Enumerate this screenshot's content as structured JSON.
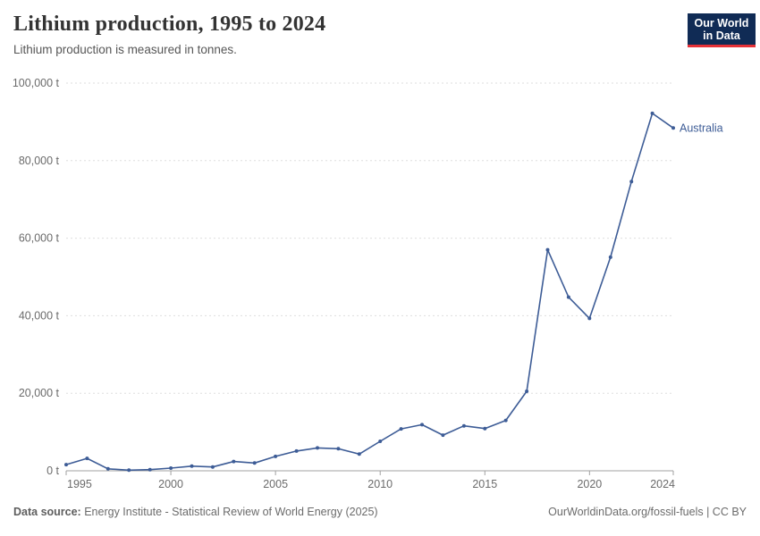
{
  "header": {
    "title": "Lithium production, 1995 to 2024",
    "subtitle": "Lithium production is measured in tonnes.",
    "logo": {
      "line1": "Our World",
      "line2": "in Data",
      "bg_color": "#102b55",
      "accent_color": "#e63137"
    }
  },
  "chart_data": {
    "type": "line",
    "title": "Lithium production, 1995 to 2024",
    "xlabel": "",
    "ylabel": "",
    "unit": "t",
    "ylim": [
      0,
      100000
    ],
    "grid": "horizontal-dashed",
    "legend_position": "end-of-line",
    "x": [
      1995,
      1996,
      1997,
      1998,
      1999,
      2000,
      2001,
      2002,
      2003,
      2004,
      2005,
      2006,
      2007,
      2008,
      2009,
      2010,
      2011,
      2012,
      2013,
      2014,
      2015,
      2016,
      2017,
      2018,
      2019,
      2020,
      2021,
      2022,
      2023,
      2024
    ],
    "series": [
      {
        "name": "Australia",
        "color": "#3d5c96",
        "values": [
          1600,
          3200,
          500,
          150,
          300,
          700,
          1200,
          1000,
          2400,
          2000,
          3700,
          5100,
          5900,
          5700,
          4300,
          7600,
          10800,
          11900,
          9200,
          11600,
          10900,
          13000,
          20500,
          57000,
          44800,
          39300,
          55100,
          74600,
          92200,
          88400
        ]
      }
    ],
    "yticks": [
      {
        "value": 0,
        "label": "0 t"
      },
      {
        "value": 20000,
        "label": "20,000 t"
      },
      {
        "value": 40000,
        "label": "40,000 t"
      },
      {
        "value": 60000,
        "label": "60,000 t"
      },
      {
        "value": 80000,
        "label": "80,000 t"
      },
      {
        "value": 100000,
        "label": "100,000 t"
      }
    ],
    "xticks": [
      {
        "value": 1995,
        "label": "1995"
      },
      {
        "value": 2000,
        "label": "2000"
      },
      {
        "value": 2005,
        "label": "2005"
      },
      {
        "value": 2010,
        "label": "2010"
      },
      {
        "value": 2015,
        "label": "2015"
      },
      {
        "value": 2020,
        "label": "2020"
      },
      {
        "value": 2024,
        "label": "2024"
      }
    ]
  },
  "colors": {
    "grid": "#dedede",
    "axis": "#a1a1a1",
    "tick_text": "#6b6b6b"
  },
  "footer": {
    "source_label": "Data source:",
    "source_text": " Energy Institute - Statistical Review of World Energy (2025)",
    "rights_text": "OurWorldinData.org/fossil-fuels | CC BY"
  }
}
